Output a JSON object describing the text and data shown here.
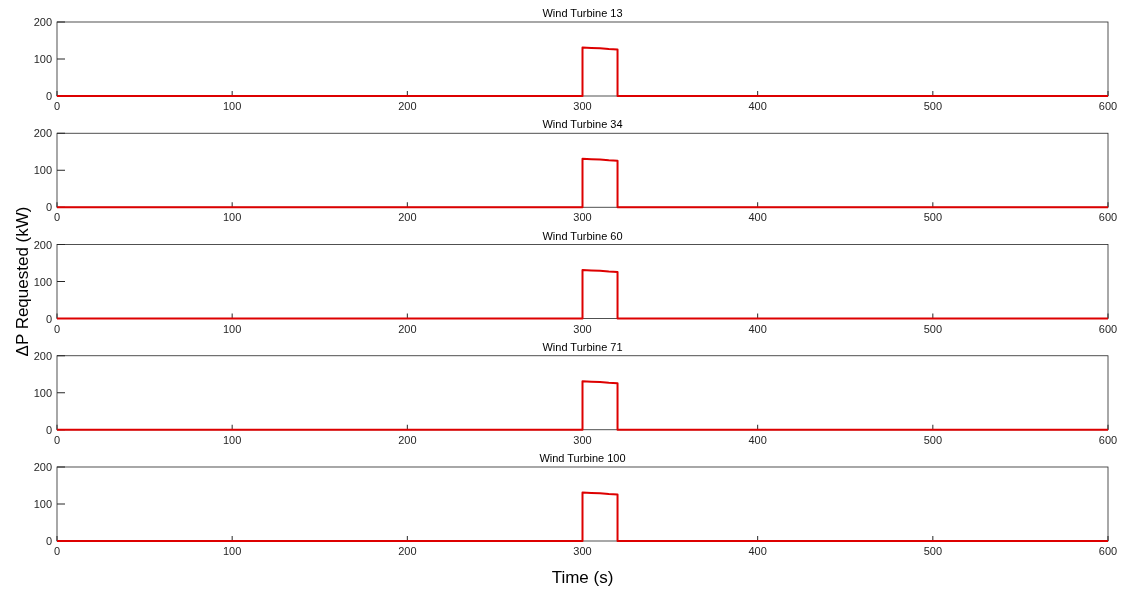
{
  "chart_data": [
    {
      "type": "line",
      "title": "Wind Turbine 13",
      "series": [
        {
          "color": "#dd0000",
          "x": [
            0,
            300,
            300,
            305,
            310,
            315,
            320,
            320,
            600
          ],
          "values": [
            0,
            0,
            131,
            130,
            129,
            127,
            126,
            0,
            0
          ]
        }
      ],
      "xlim": [
        0,
        600
      ],
      "xticks": [
        0,
        100,
        200,
        300,
        400,
        500,
        600
      ],
      "ylim": [
        0,
        200
      ],
      "yticks": [
        0,
        100,
        200
      ],
      "grid": false
    },
    {
      "type": "line",
      "title": "Wind Turbine 34",
      "series": [
        {
          "color": "#dd0000",
          "x": [
            0,
            300,
            300,
            305,
            310,
            315,
            320,
            320,
            600
          ],
          "values": [
            0,
            0,
            131,
            130,
            129,
            127,
            126,
            0,
            0
          ]
        }
      ],
      "xlim": [
        0,
        600
      ],
      "xticks": [
        0,
        100,
        200,
        300,
        400,
        500,
        600
      ],
      "ylim": [
        0,
        200
      ],
      "yticks": [
        0,
        100,
        200
      ],
      "grid": false
    },
    {
      "type": "line",
      "title": "Wind Turbine 60",
      "ylabel": "ΔP Requested (kW)",
      "series": [
        {
          "color": "#dd0000",
          "x": [
            0,
            300,
            300,
            305,
            310,
            315,
            320,
            320,
            600
          ],
          "values": [
            0,
            0,
            131,
            130,
            129,
            127,
            126,
            0,
            0
          ]
        }
      ],
      "xlim": [
        0,
        600
      ],
      "xticks": [
        0,
        100,
        200,
        300,
        400,
        500,
        600
      ],
      "ylim": [
        0,
        200
      ],
      "yticks": [
        0,
        100,
        200
      ],
      "grid": false
    },
    {
      "type": "line",
      "title": "Wind Turbine 71",
      "series": [
        {
          "color": "#dd0000",
          "x": [
            0,
            300,
            300,
            305,
            310,
            315,
            320,
            320,
            600
          ],
          "values": [
            0,
            0,
            131,
            130,
            129,
            127,
            126,
            0,
            0
          ]
        }
      ],
      "xlim": [
        0,
        600
      ],
      "xticks": [
        0,
        100,
        200,
        300,
        400,
        500,
        600
      ],
      "ylim": [
        0,
        200
      ],
      "yticks": [
        0,
        100,
        200
      ],
      "grid": false
    },
    {
      "type": "line",
      "title": "Wind Turbine 100",
      "xlabel": "Time (s)",
      "series": [
        {
          "color": "#dd0000",
          "x": [
            0,
            300,
            300,
            305,
            310,
            315,
            320,
            320,
            600
          ],
          "values": [
            0,
            0,
            131,
            130,
            129,
            127,
            126,
            0,
            0
          ]
        }
      ],
      "xlim": [
        0,
        600
      ],
      "xticks": [
        0,
        100,
        200,
        300,
        400,
        500,
        600
      ],
      "ylim": [
        0,
        200
      ],
      "yticks": [
        0,
        100,
        200
      ],
      "grid": false
    }
  ]
}
